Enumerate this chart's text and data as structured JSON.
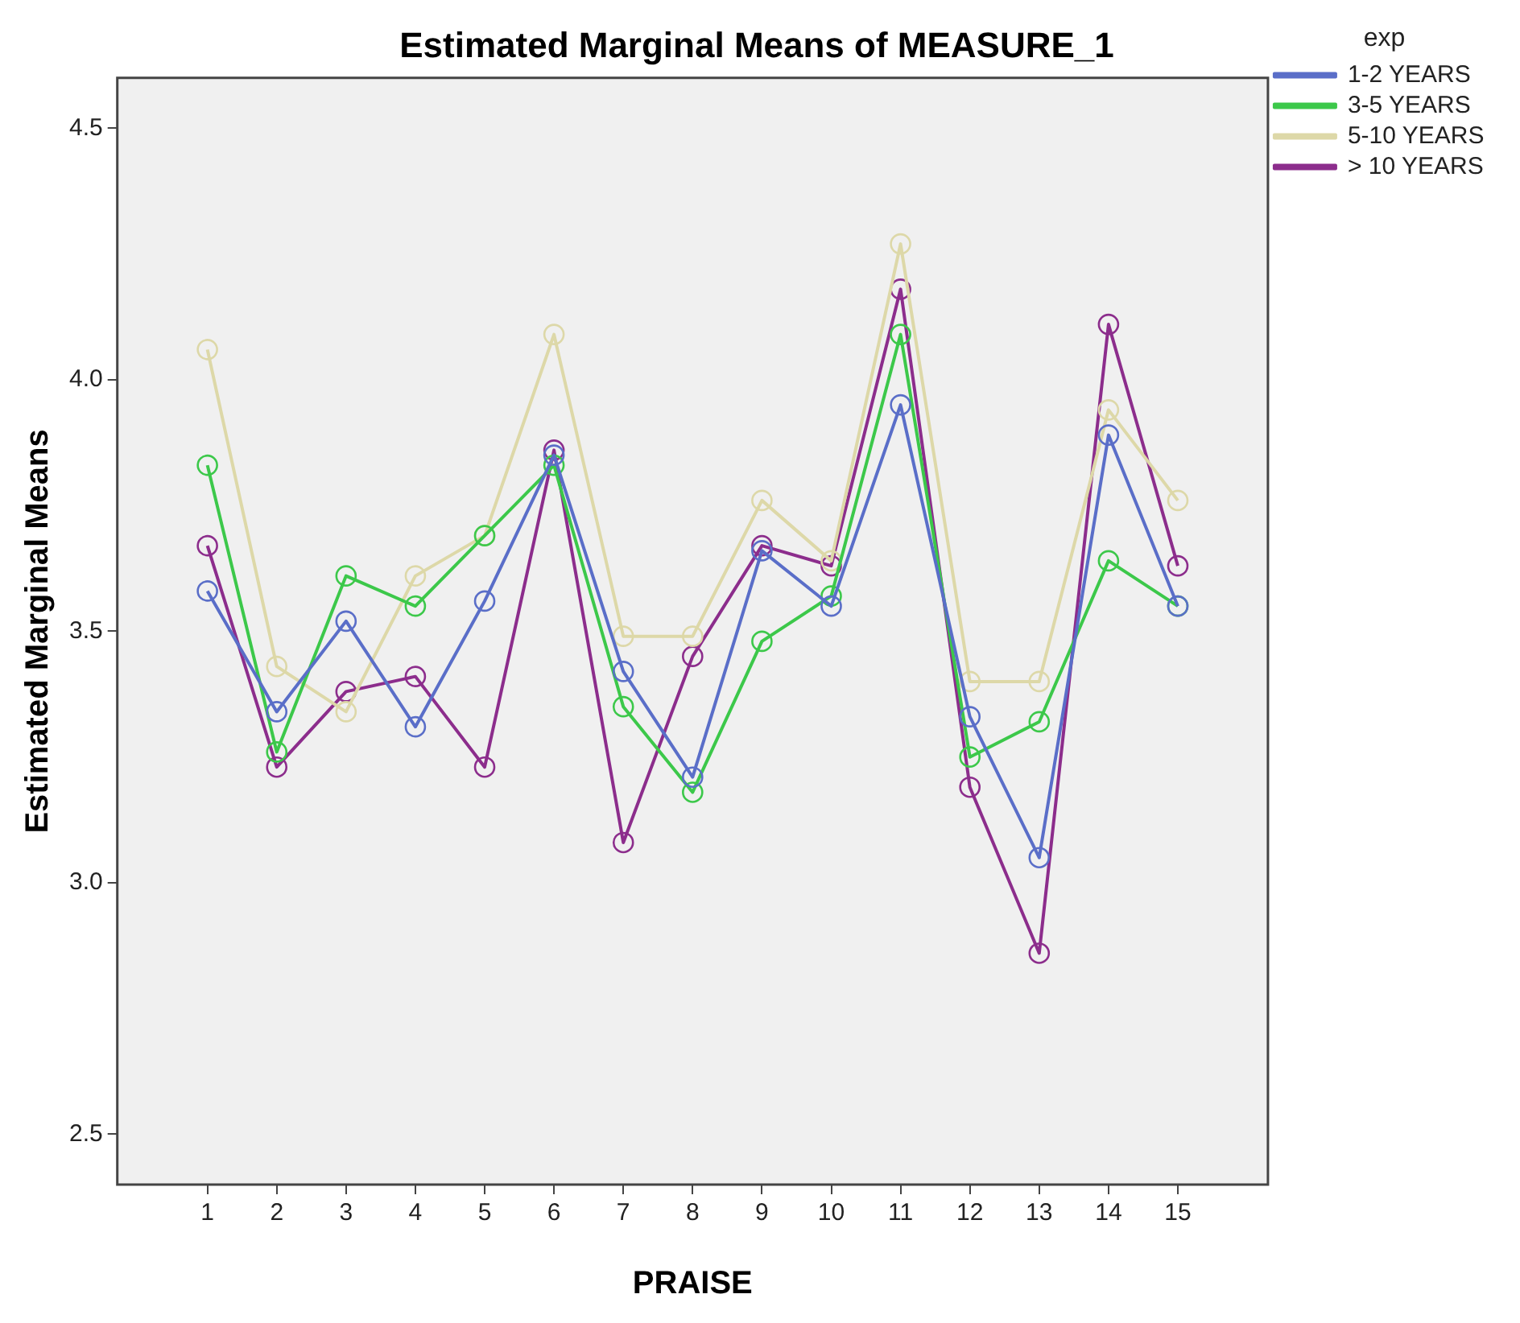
{
  "chart_data": {
    "type": "line",
    "title": "Estimated Marginal Means of MEASURE_1",
    "xlabel": "PRAISE",
    "ylabel": "Estimated Marginal Means",
    "legend_title": "exp",
    "legend": "right",
    "marker": "circle",
    "line_style": "solid",
    "grid": false,
    "x": [
      1,
      2,
      3,
      4,
      5,
      6,
      7,
      8,
      9,
      10,
      11,
      12,
      13,
      14,
      15
    ],
    "xlim": [
      -0.3,
      16.3
    ],
    "xticks": [
      1,
      2,
      3,
      4,
      5,
      6,
      7,
      8,
      9,
      10,
      11,
      12,
      13,
      14,
      15
    ],
    "ylim": [
      2.4,
      4.6
    ],
    "yticks": [
      2.5,
      {
        "value": 3,
        "label": "3.0"
      },
      3.5,
      {
        "value": 4,
        "label": "4.0"
      },
      4.5
    ],
    "series": [
      {
        "name": "1-2 YEARS",
        "color": "#5a6ec8",
        "values": [
          3.58,
          3.34,
          3.52,
          3.31,
          3.56,
          3.85,
          3.42,
          3.21,
          3.66,
          3.55,
          3.95,
          3.33,
          3.05,
          3.89,
          3.55
        ]
      },
      {
        "name": "3-5 YEARS",
        "color": "#3cc84a",
        "values": [
          3.83,
          3.26,
          3.61,
          3.55,
          3.69,
          3.83,
          3.35,
          3.18,
          3.48,
          3.57,
          4.09,
          3.25,
          3.32,
          3.64,
          3.55
        ]
      },
      {
        "name": "5-10 YEARS",
        "color": "#ddd8a8",
        "values": [
          4.06,
          3.43,
          3.34,
          3.61,
          3.69,
          4.09,
          3.49,
          3.49,
          3.76,
          3.64,
          4.27,
          3.4,
          3.4,
          3.94,
          3.76
        ]
      },
      {
        "name": "> 10 YEARS",
        "color": "#8c2d8c",
        "values": [
          3.67,
          3.23,
          3.38,
          3.41,
          3.23,
          3.86,
          3.08,
          3.45,
          3.67,
          3.63,
          4.18,
          3.19,
          2.86,
          4.11,
          3.63
        ]
      }
    ]
  }
}
